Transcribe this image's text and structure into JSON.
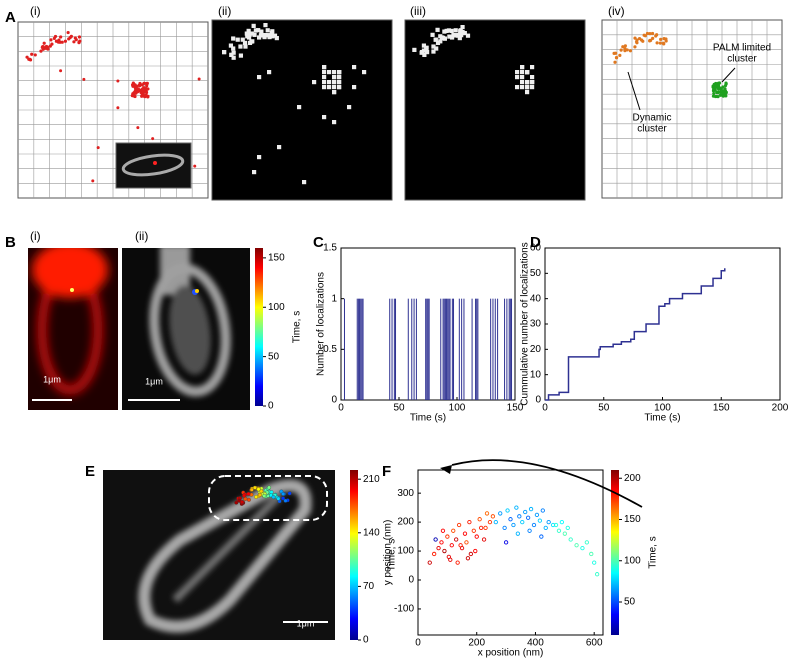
{
  "figure": {
    "panel_labels": [
      "A",
      "B",
      "C",
      "D",
      "E",
      "F"
    ],
    "a_sublabels": [
      "(i)",
      "(ii)",
      "(iii)",
      "(iv)"
    ],
    "b_sublabels": [
      "(i)",
      "(ii)"
    ],
    "dynamic_cluster": [
      "Dynamic",
      "cluster"
    ],
    "palm_cluster": [
      "PALM limited",
      "cluster"
    ],
    "scale_bar": "1μm"
  },
  "colorbars": [
    {
      "label": "Time, s",
      "lim": [
        0,
        160
      ],
      "ticks": [
        0,
        50,
        100,
        150
      ]
    },
    {
      "label": "Time, s",
      "lim": [
        0,
        222
      ],
      "ticks": [
        0,
        70,
        140,
        210
      ]
    }
  ],
  "chart_data": [
    {
      "type": "spike",
      "xlabel": "Time (s)",
      "ylabel": "Number of localizations",
      "color": "#2e3192",
      "x": [
        3,
        14,
        15,
        16,
        17,
        18,
        19,
        42,
        44,
        46,
        47,
        58,
        61,
        63,
        65,
        73,
        74,
        75,
        76,
        86,
        88,
        89,
        90,
        91,
        92,
        93,
        94,
        96,
        97,
        102,
        104,
        106,
        113,
        116,
        117,
        118,
        129,
        131,
        133,
        135,
        141,
        143,
        145,
        146,
        147
      ],
      "values": [
        1,
        1,
        1,
        1,
        1,
        1,
        1,
        1,
        1,
        1,
        1,
        1,
        1,
        1,
        1,
        1,
        1,
        1,
        1,
        1,
        1,
        1,
        1,
        1,
        1,
        1,
        1,
        1,
        1,
        1,
        1,
        1,
        1,
        1,
        1,
        1,
        1,
        1,
        1,
        1,
        1,
        1,
        1,
        1,
        1
      ],
      "xlim": [
        0,
        150
      ],
      "ylim": [
        0,
        1.5
      ],
      "xticks": [
        0,
        50,
        100,
        150
      ],
      "yticks": [
        0,
        0.5,
        1,
        1.5
      ]
    },
    {
      "type": "step",
      "xlabel": "Time (s)",
      "ylabel": "Cummulative number of localizations",
      "color": "#2e3192",
      "x": [
        0,
        3,
        12,
        20,
        42,
        46,
        47,
        58,
        65,
        73,
        76,
        86,
        97,
        102,
        106,
        117,
        133,
        143,
        150,
        153
      ],
      "values": [
        0,
        2,
        3,
        17,
        17,
        20,
        21,
        22,
        23,
        24,
        27,
        30,
        37,
        38,
        40,
        42,
        45,
        48,
        51,
        52
      ],
      "xlim": [
        0,
        200
      ],
      "ylim": [
        0,
        60
      ],
      "xticks": [
        0,
        50,
        100,
        150,
        200
      ],
      "yticks": [
        0,
        10,
        20,
        30,
        40,
        50,
        60
      ]
    },
    {
      "type": "scatter",
      "xlabel": "x position (nm)",
      "ylabel": "y position (nm)",
      "x": [
        40,
        55,
        70,
        80,
        90,
        100,
        105,
        115,
        120,
        130,
        135,
        140,
        150,
        160,
        165,
        175,
        180,
        190,
        200,
        210,
        215,
        225,
        235,
        245,
        255,
        60,
        85,
        110,
        145,
        170,
        195,
        230,
        265,
        280,
        295,
        305,
        315,
        325,
        335,
        345,
        355,
        365,
        375,
        385,
        395,
        405,
        415,
        425,
        435,
        445,
        300,
        340,
        380,
        420,
        460,
        470,
        480,
        490,
        500,
        510,
        520,
        540,
        560,
        575,
        590,
        600,
        610
      ],
      "values": [
        60,
        90,
        110,
        130,
        100,
        150,
        80,
        120,
        170,
        140,
        60,
        190,
        110,
        160,
        130,
        200,
        90,
        170,
        150,
        210,
        180,
        140,
        230,
        200,
        220,
        140,
        170,
        70,
        120,
        75,
        100,
        180,
        200,
        230,
        180,
        240,
        210,
        190,
        250,
        220,
        200,
        235,
        215,
        245,
        190,
        225,
        205,
        240,
        180,
        200,
        130,
        160,
        170,
        150,
        190,
        190,
        170,
        200,
        160,
        180,
        140,
        120,
        110,
        130,
        90,
        60,
        20
      ],
      "c": [
        195,
        180,
        190,
        185,
        200,
        175,
        190,
        185,
        170,
        195,
        180,
        175,
        190,
        185,
        170,
        180,
        195,
        175,
        185,
        170,
        180,
        190,
        165,
        175,
        170,
        20,
        185,
        190,
        180,
        195,
        185,
        175,
        70,
        65,
        60,
        75,
        55,
        65,
        70,
        60,
        75,
        65,
        55,
        70,
        60,
        65,
        75,
        60,
        70,
        65,
        30,
        70,
        60,
        55,
        80,
        90,
        95,
        85,
        100,
        90,
        95,
        100,
        90,
        95,
        100,
        90,
        95
      ],
      "xlim": [
        0,
        630
      ],
      "ylim": [
        -190,
        380
      ],
      "xticks": [
        0,
        200,
        400,
        600
      ],
      "yticks": [
        -100,
        0,
        100,
        200,
        300
      ],
      "clabel": "Time, s",
      "clim": [
        10,
        210
      ],
      "cticks": [
        50,
        100,
        150,
        200
      ]
    }
  ]
}
